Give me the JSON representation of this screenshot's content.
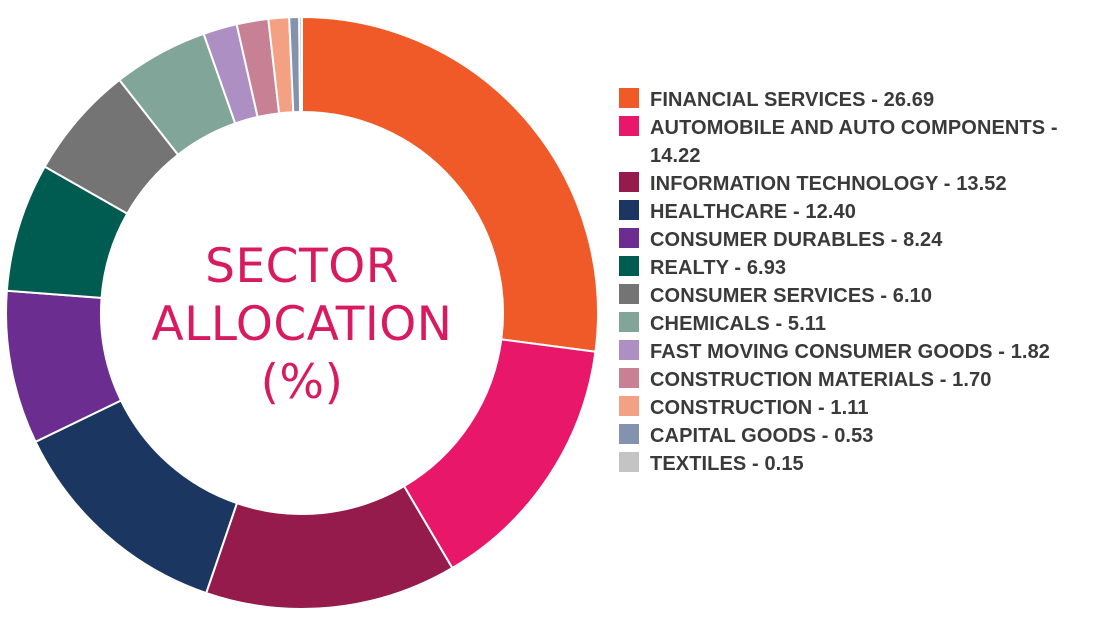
{
  "chart_data": {
    "type": "pie",
    "title": "SECTOR ALLOCATION (%)",
    "title_lines": [
      "SECTOR",
      "ALLOCATION",
      "(%)"
    ],
    "title_color": "#d81b60",
    "donut": true,
    "legend_position": "right",
    "slices": [
      {
        "label": "FINANCIAL SERVICES - 26.69",
        "name": "FINANCIAL SERVICES",
        "value": 26.69,
        "color": "#f05a28"
      },
      {
        "label": "AUTOMOBILE AND AUTO COMPONENTS - 14.22",
        "name": "AUTOMOBILE AND AUTO COMPONENTS",
        "value": 14.22,
        "color": "#e8176a"
      },
      {
        "label": "INFORMATION TECHNOLOGY - 13.52",
        "name": "INFORMATION TECHNOLOGY",
        "value": 13.52,
        "color": "#951b4c"
      },
      {
        "label": "HEALTHCARE - 12.40",
        "name": "HEALTHCARE",
        "value": 12.4,
        "color": "#1b3660"
      },
      {
        "label": "CONSUMER DURABLES - 8.24",
        "name": "CONSUMER DURABLES",
        "value": 8.24,
        "color": "#6c2d90"
      },
      {
        "label": "REALTY - 6.93",
        "name": "REALTY",
        "value": 6.93,
        "color": "#005c50"
      },
      {
        "label": "CONSUMER SERVICES - 6.10",
        "name": "CONSUMER SERVICES",
        "value": 6.1,
        "color": "#747474"
      },
      {
        "label": "CHEMICALS - 5.11",
        "name": "CHEMICALS",
        "value": 5.11,
        "color": "#82a59a"
      },
      {
        "label": "FAST MOVING CONSUMER GOODS - 1.82",
        "name": "FAST MOVING CONSUMER GOODS",
        "value": 1.82,
        "color": "#ad8fc4"
      },
      {
        "label": "CONSTRUCTION MATERIALS - 1.70",
        "name": "CONSTRUCTION MATERIALS",
        "value": 1.7,
        "color": "#c88095"
      },
      {
        "label": "CONSTRUCTION - 1.11",
        "name": "CONSTRUCTION",
        "value": 1.11,
        "color": "#f4a082"
      },
      {
        "label": "CAPITAL GOODS - 0.53",
        "name": "CAPITAL GOODS",
        "value": 0.53,
        "color": "#8393ad"
      },
      {
        "label": "TEXTILES - 0.15",
        "name": "TEXTILES",
        "value": 0.15,
        "color": "#c4c4c4"
      }
    ]
  }
}
